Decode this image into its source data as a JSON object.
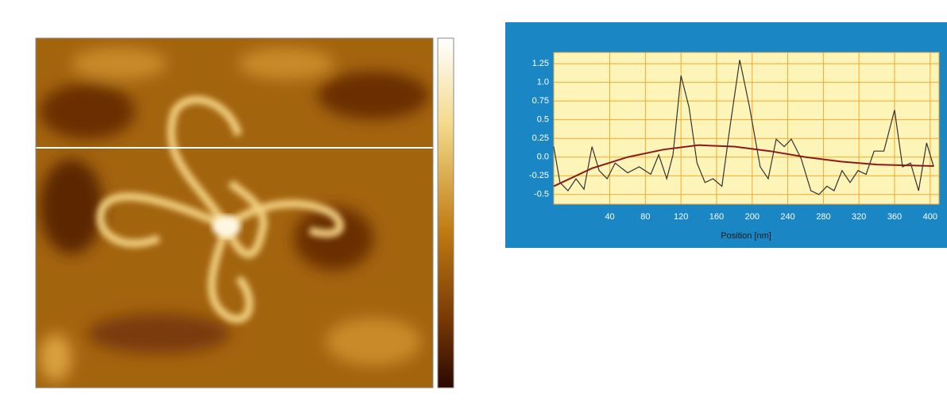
{
  "chart_data": {
    "type": "line",
    "xlabel": "Position [nm]",
    "xlim": [
      -23,
      410
    ],
    "ylim": [
      -0.63,
      1.4
    ],
    "xticks": [
      40,
      80,
      120,
      160,
      200,
      240,
      280,
      320,
      360,
      400
    ],
    "yticks": [
      -0.5,
      -0.25,
      {
        "value": 0,
        "label": "0.0"
      },
      0.25,
      0.5,
      0.75,
      {
        "value": 1,
        "label": "1.0"
      },
      1.25
    ],
    "grid": true,
    "series": [
      {
        "color": "#333333",
        "x": [
          -23,
          -16,
          -7,
          2,
          11,
          20,
          28,
          37,
          46,
          60,
          73,
          86,
          95,
          104,
          111,
          120,
          129,
          138,
          147,
          156,
          166,
          175,
          186,
          197,
          209,
          218,
          227,
          236,
          244,
          255,
          266,
          275,
          284,
          292,
          301,
          310,
          319,
          328,
          337,
          348,
          360,
          369,
          378,
          387,
          396,
          404
        ],
        "values": [
          0.14,
          -0.34,
          -0.45,
          -0.29,
          -0.43,
          0.14,
          -0.18,
          -0.29,
          -0.08,
          -0.21,
          -0.13,
          -0.23,
          0.03,
          -0.29,
          0.03,
          1.09,
          0.67,
          -0.08,
          -0.34,
          -0.29,
          -0.39,
          0.4,
          1.3,
          0.67,
          -0.13,
          -0.29,
          0.24,
          0.14,
          0.24,
          -0.02,
          -0.45,
          -0.5,
          -0.39,
          -0.45,
          -0.18,
          -0.34,
          -0.18,
          -0.23,
          0.08,
          0.08,
          0.63,
          -0.13,
          -0.08,
          -0.45,
          0.19,
          -0.13
        ]
      },
      {
        "color": "#8b1a1a",
        "x": [
          -23,
          20,
          60,
          100,
          140,
          180,
          220,
          260,
          300,
          340,
          404
        ],
        "values": [
          -0.39,
          -0.15,
          0.0,
          0.1,
          0.16,
          0.14,
          0.08,
          0.0,
          -0.06,
          -0.1,
          -0.12
        ]
      }
    ]
  }
}
